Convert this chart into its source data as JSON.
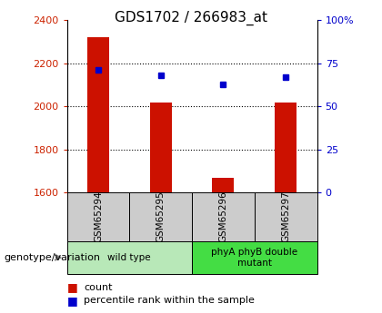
{
  "title": "GDS1702 / 266983_at",
  "samples": [
    "GSM65294",
    "GSM65295",
    "GSM65296",
    "GSM65297"
  ],
  "count_values": [
    2320,
    2020,
    1670,
    2020
  ],
  "percentile_values": [
    71,
    68,
    63,
    67
  ],
  "ylim_left": [
    1600,
    2400
  ],
  "ylim_right": [
    0,
    100
  ],
  "yticks_left": [
    1600,
    1800,
    2000,
    2200,
    2400
  ],
  "yticks_right": [
    0,
    25,
    50,
    75,
    100
  ],
  "ytick_labels_right": [
    "0",
    "25",
    "50",
    "75",
    "100%"
  ],
  "groups": [
    {
      "label": "wild type",
      "samples": [
        0,
        1
      ],
      "color": "#b8e8b8"
    },
    {
      "label": "phyA phyB double\nmutant",
      "samples": [
        2,
        3
      ],
      "color": "#44dd44"
    }
  ],
  "bar_color": "#cc1100",
  "dot_color": "#0000cc",
  "bar_width": 0.35,
  "grid_color": "black",
  "left_tick_color": "#cc2200",
  "right_tick_color": "#0000cc",
  "bg_color": "#ffffff",
  "plot_bg_color": "#ffffff",
  "sample_box_color": "#cccccc",
  "legend_count_label": "count",
  "legend_pct_label": "percentile rank within the sample",
  "genotype_label": "genotype/variation"
}
